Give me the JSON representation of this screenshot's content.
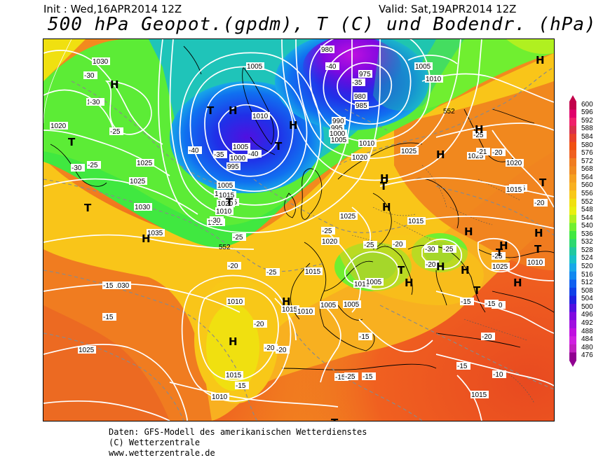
{
  "header": {
    "init": "Init : Wed,16APR2014 12Z",
    "valid": "Valid: Sat,19APR2014 12Z",
    "title": "500 hPa Geopot.(gpdm), T (C) und Bodendr. (hPa)"
  },
  "colorbar": {
    "levels": [
      "600",
      "596",
      "592",
      "588",
      "584",
      "580",
      "576",
      "572",
      "568",
      "564",
      "560",
      "556",
      "552",
      "548",
      "544",
      "540",
      "536",
      "532",
      "528",
      "524",
      "520",
      "516",
      "512",
      "508",
      "504",
      "500",
      "496",
      "492",
      "488",
      "484",
      "480",
      "476"
    ],
    "colors": [
      "#c2004a",
      "#e0006a",
      "#f0206a",
      "#d8304a",
      "#e8402a",
      "#f05010",
      "#f06020",
      "#f07c20",
      "#f08a20",
      "#f5a020",
      "#f8b020",
      "#f8c818",
      "#f0e010",
      "#e8f010",
      "#b0f020",
      "#70ef30",
      "#40e840",
      "#2cd870",
      "#20c8a0",
      "#18c0c8",
      "#18a8e8",
      "#1088f0",
      "#1060f0",
      "#1040e8",
      "#2020e0",
      "#5010e0",
      "#8008e0",
      "#a010e0",
      "#c010e0",
      "#d020e0",
      "#c020c0",
      "#900090"
    ]
  },
  "map": {
    "pressure_labels": [
      "1030",
      "1030",
      "1020",
      "1025",
      "1025",
      "1030",
      "1035",
      "1030",
      "1025",
      "1015",
      "1010",
      "1015",
      "1005",
      "1010",
      "1015",
      "1020",
      "995",
      "1000",
      "1005",
      "1010",
      "1005",
      "980",
      "975",
      "980",
      "985",
      "990",
      "995",
      "1000",
      "1005",
      "1010",
      "1005",
      "1010",
      "1020",
      "1025",
      "1025",
      "1020",
      "1015",
      "1015",
      "1025",
      "1015",
      "1020",
      "1015",
      "1010",
      "1005",
      "1010",
      "1005",
      "1005",
      "1010",
      "1015",
      "1010",
      "1015",
      "1010",
      "1025",
      "1015"
    ],
    "temp_labels": [
      "-30",
      "-30",
      "-25",
      "-30",
      "-25",
      "-40",
      "-35",
      "-40",
      "-40",
      "-35",
      "-30",
      "-25",
      "-25",
      "-20",
      "-25",
      "-15",
      "-15",
      "-20",
      "-15",
      "-15",
      "-15",
      "-20",
      "-20",
      "-25",
      "-20",
      "-25",
      "-25",
      "-20",
      "-15",
      "-20",
      "-10",
      "-15",
      "-25",
      "-30",
      "-25",
      "-21",
      "-20",
      "-15",
      "-20",
      "-15",
      "-20"
    ],
    "pressure_systems": [
      {
        "type": "H"
      },
      {
        "type": "T"
      },
      {
        "type": "T"
      },
      {
        "type": "H"
      },
      {
        "type": "T"
      },
      {
        "type": "H"
      },
      {
        "type": "H"
      },
      {
        "type": "T"
      },
      {
        "type": "T"
      },
      {
        "type": "H"
      },
      {
        "type": "H"
      },
      {
        "type": "H"
      },
      {
        "type": "H"
      },
      {
        "type": "T"
      },
      {
        "type": "T"
      },
      {
        "type": "H"
      },
      {
        "type": "H"
      },
      {
        "type": "T"
      },
      {
        "type": "H"
      },
      {
        "type": "H"
      },
      {
        "type": "T"
      },
      {
        "type": "H"
      },
      {
        "type": "T"
      },
      {
        "type": "H"
      },
      {
        "type": "T"
      },
      {
        "type": "H"
      },
      {
        "type": "H"
      },
      {
        "type": "T"
      },
      {
        "type": "H"
      },
      {
        "type": "H"
      }
    ],
    "contour_552_label": "552"
  },
  "footer": {
    "line1": "Daten: GFS-Modell des amerikanischen Wetterdienstes",
    "line2": "(C) Wetterzentrale",
    "line3": "www.wetterzentrale.de"
  }
}
